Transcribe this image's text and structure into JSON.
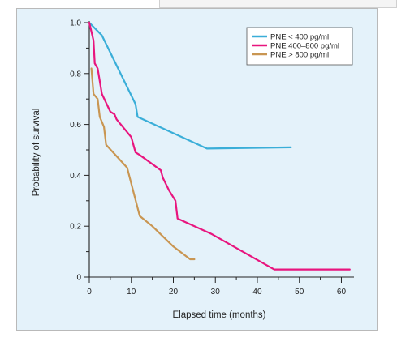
{
  "chart_data": {
    "type": "line",
    "title": "",
    "xlabel": "Elapsed time (months)",
    "ylabel": "Probability of survival",
    "xlim": [
      0,
      63
    ],
    "ylim": [
      0,
      1.0
    ],
    "x_ticks": [
      0,
      10,
      20,
      30,
      40,
      50,
      60
    ],
    "y_ticks": [
      0,
      0.2,
      0.4,
      0.6,
      0.8,
      1.0
    ],
    "y_tick_labels": [
      "0",
      "0.2",
      "0.4",
      "0.6",
      "0.8",
      "1.0"
    ],
    "grid": false,
    "legend_position": "top-right",
    "series": [
      {
        "name": "PNE < 400 pg/ml",
        "color": "#3aaed8",
        "points": [
          [
            0,
            1.0
          ],
          [
            3,
            0.95
          ],
          [
            11,
            0.68
          ],
          [
            11.5,
            0.63
          ],
          [
            28,
            0.505
          ],
          [
            48,
            0.51
          ]
        ]
      },
      {
        "name": "PNE 400–800 pg/ml",
        "color": "#e8157e",
        "points": [
          [
            0,
            1.0
          ],
          [
            1,
            0.93
          ],
          [
            1.3,
            0.84
          ],
          [
            2,
            0.82
          ],
          [
            3,
            0.72
          ],
          [
            5,
            0.65
          ],
          [
            6,
            0.64
          ],
          [
            6.5,
            0.62
          ],
          [
            10,
            0.55
          ],
          [
            11,
            0.49
          ],
          [
            12,
            0.48
          ],
          [
            17,
            0.42
          ],
          [
            17.5,
            0.39
          ],
          [
            19,
            0.34
          ],
          [
            20.5,
            0.3
          ],
          [
            21,
            0.23
          ],
          [
            29,
            0.17
          ],
          [
            44,
            0.03
          ],
          [
            62,
            0.03
          ]
        ]
      },
      {
        "name": "PNE > 800 pg/ml",
        "color": "#c99652",
        "points": [
          [
            0.5,
            0.82
          ],
          [
            1,
            0.72
          ],
          [
            2,
            0.7
          ],
          [
            2.5,
            0.63
          ],
          [
            3.5,
            0.59
          ],
          [
            4,
            0.52
          ],
          [
            9,
            0.43
          ],
          [
            12,
            0.24
          ],
          [
            15,
            0.2
          ],
          [
            20,
            0.12
          ],
          [
            24,
            0.07
          ],
          [
            25,
            0.07
          ]
        ]
      }
    ]
  }
}
